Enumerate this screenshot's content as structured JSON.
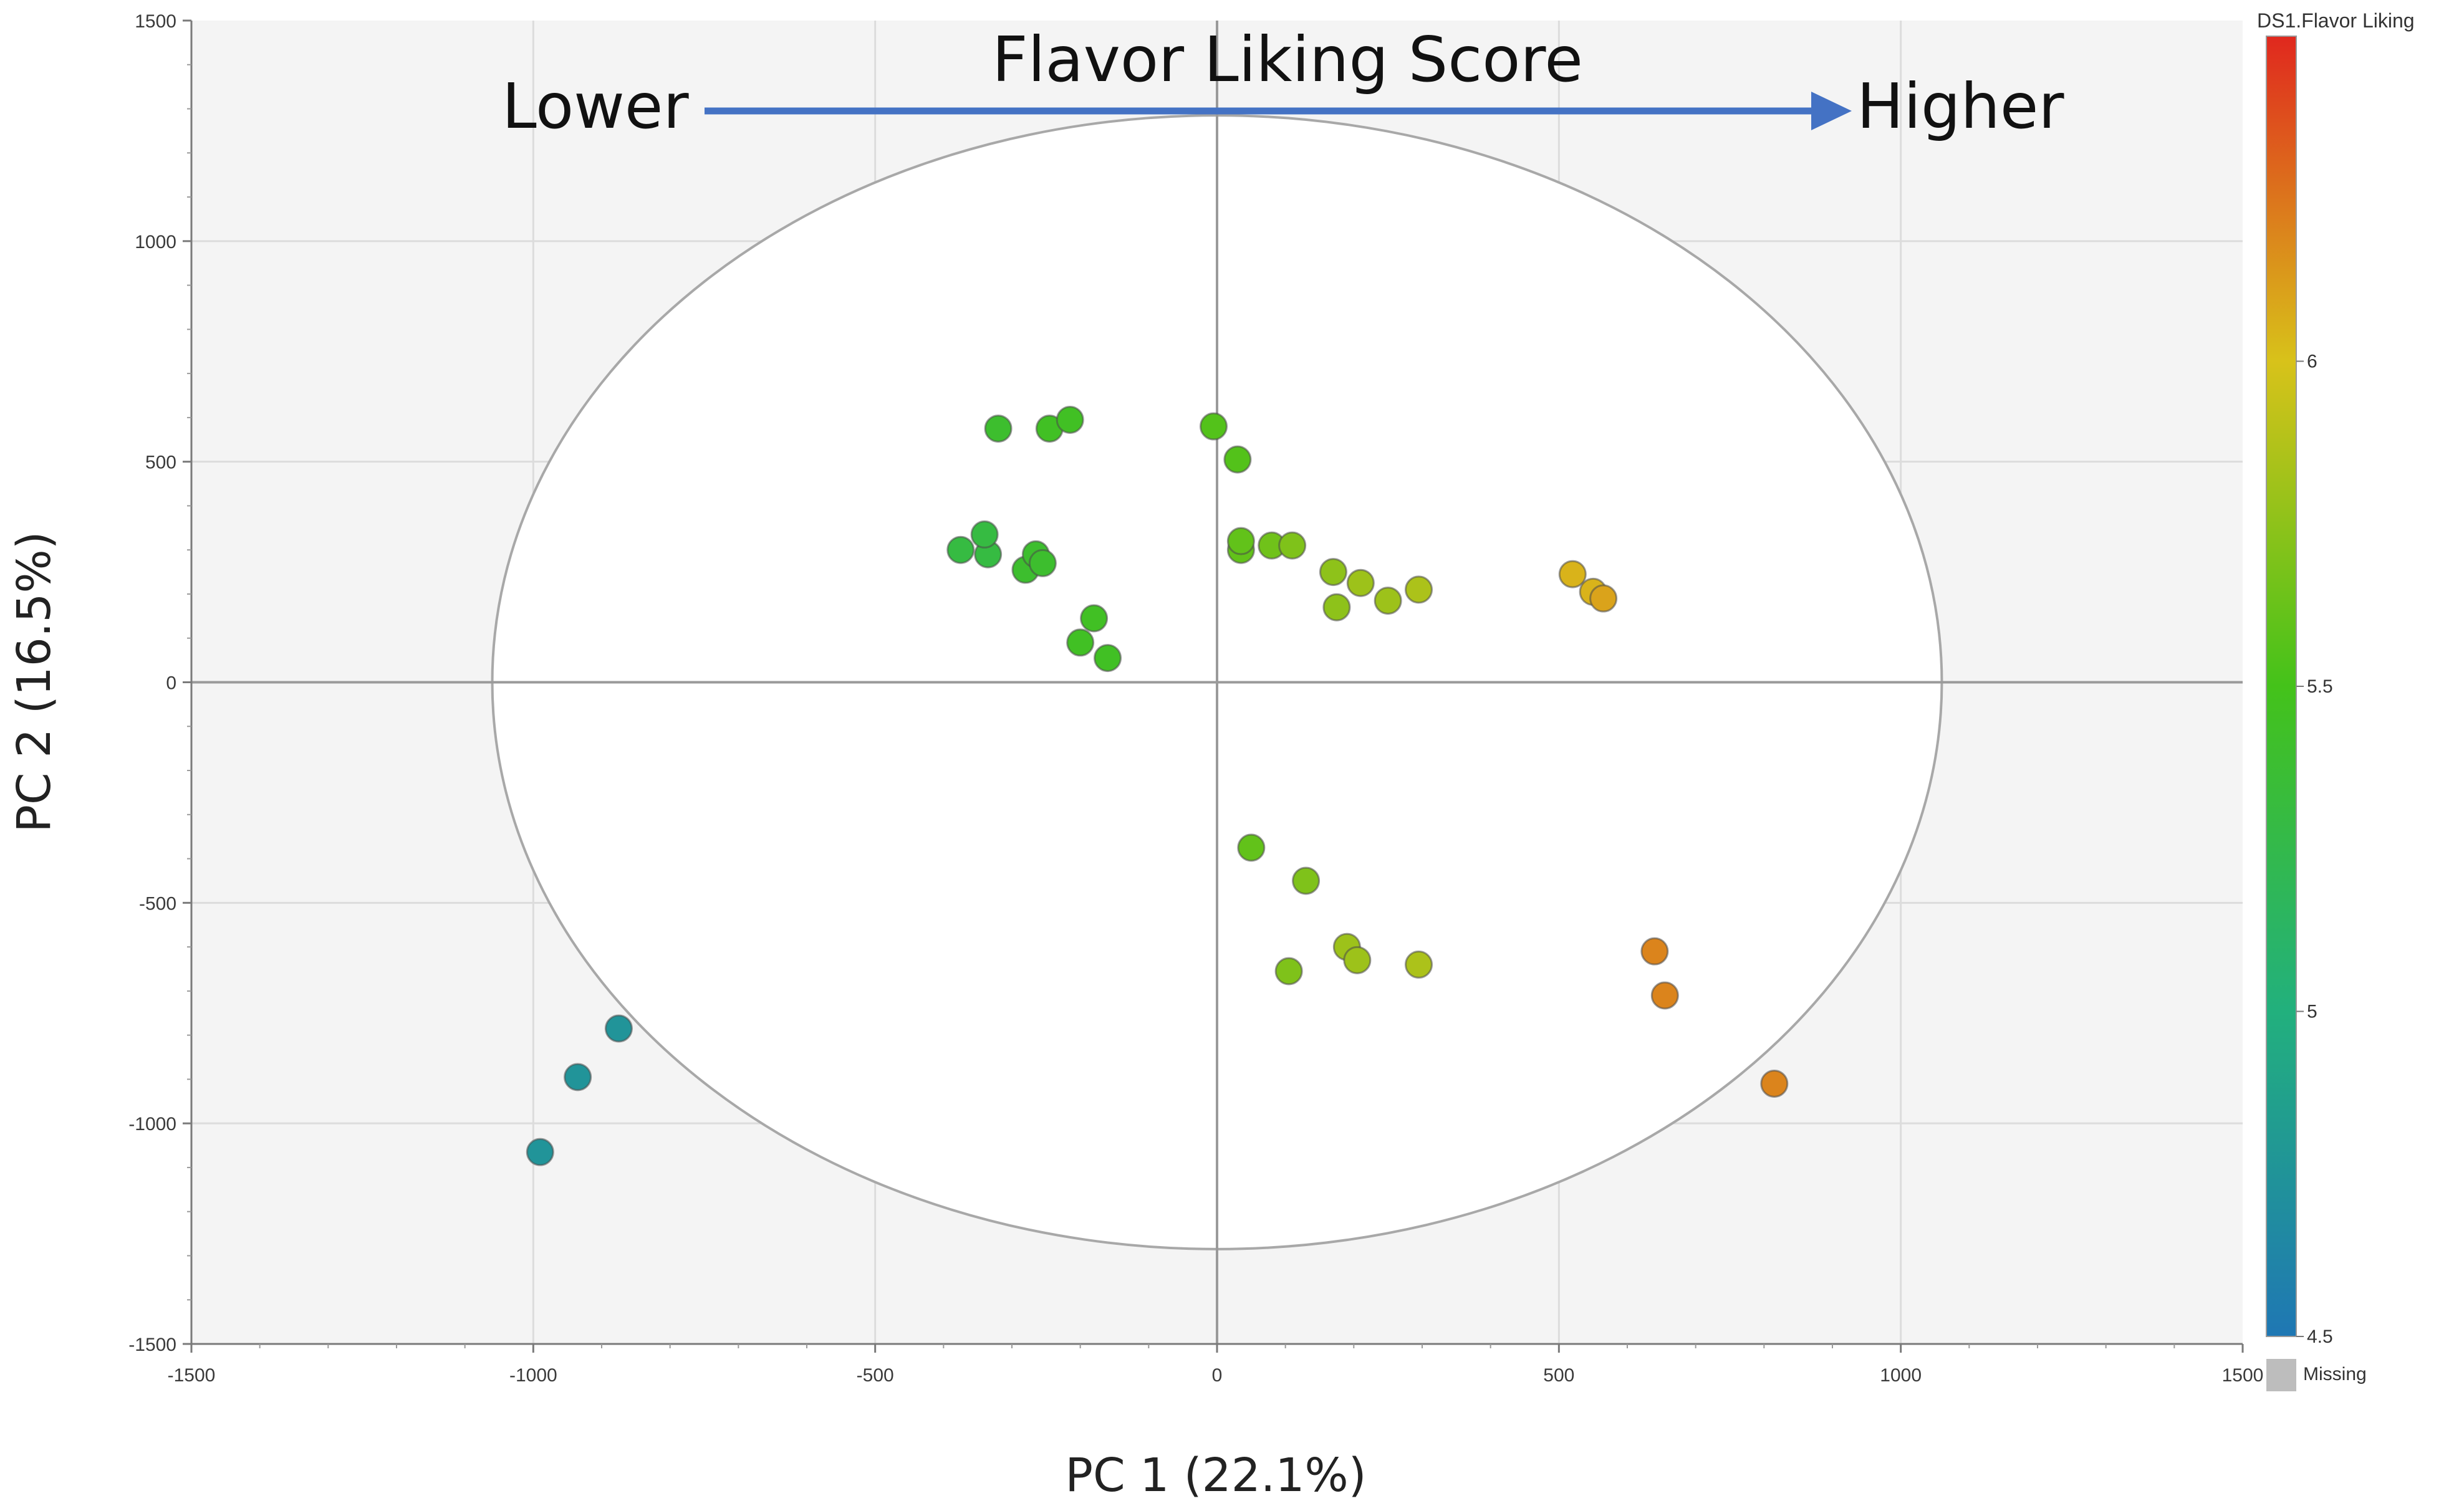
{
  "chart_data": {
    "type": "scatter",
    "title": "Flavor Liking Score",
    "annotation_low": "Lower",
    "annotation_high": "Higher",
    "xlabel": "PC 1 (22.1%)",
    "ylabel": "PC 2 (16.5%)",
    "xlim": [
      -1500,
      1500
    ],
    "ylim": [
      -1500,
      1500
    ],
    "xticks": [
      -1500,
      -1000,
      -500,
      0,
      500,
      1000,
      1500
    ],
    "yticks": [
      -1500,
      -1000,
      -500,
      0,
      500,
      1000,
      1500
    ],
    "xtick_labels": [
      "-1500",
      "-1000",
      "-500",
      "0",
      "500",
      "1000",
      "1500"
    ],
    "ytick_labels": [
      "-1500",
      "-1000",
      "-500",
      "0",
      "500",
      "1000",
      "1500"
    ],
    "grid": true,
    "confidence_ellipse": {
      "center": [
        0,
        0
      ],
      "rx": 1060,
      "ry": 1285
    },
    "colorbar": {
      "title": "DS1.Flavor Liking",
      "min": 4.5,
      "max": 6.5,
      "ticks": [
        4.5,
        5,
        5.5,
        6
      ],
      "tick_labels": [
        "4.5",
        "5",
        "5.5",
        "6"
      ],
      "missing_label": "Missing",
      "missing_color": "#bdbdbd",
      "color_stops": [
        {
          "value": 4.5,
          "color": "#1f77b4"
        },
        {
          "value": 5.0,
          "color": "#22b07d"
        },
        {
          "value": 5.5,
          "color": "#44c21a"
        },
        {
          "value": 6.0,
          "color": "#d8c21a"
        },
        {
          "value": 6.5,
          "color": "#e0281e"
        }
      ]
    },
    "points": [
      {
        "x": -990,
        "y": -1065,
        "liking": 4.75
      },
      {
        "x": -935,
        "y": -895,
        "liking": 4.75
      },
      {
        "x": -875,
        "y": -785,
        "liking": 4.75
      },
      {
        "x": -375,
        "y": 300,
        "liking": 5.3
      },
      {
        "x": -335,
        "y": 290,
        "liking": 5.3
      },
      {
        "x": -340,
        "y": 335,
        "liking": 5.3
      },
      {
        "x": -320,
        "y": 575,
        "liking": 5.4
      },
      {
        "x": -280,
        "y": 255,
        "liking": 5.4
      },
      {
        "x": -265,
        "y": 290,
        "liking": 5.4
      },
      {
        "x": -255,
        "y": 270,
        "liking": 5.4
      },
      {
        "x": -245,
        "y": 575,
        "liking": 5.45
      },
      {
        "x": -215,
        "y": 595,
        "liking": 5.45
      },
      {
        "x": -200,
        "y": 90,
        "liking": 5.45
      },
      {
        "x": -180,
        "y": 145,
        "liking": 5.45
      },
      {
        "x": -160,
        "y": 55,
        "liking": 5.45
      },
      {
        "x": -5,
        "y": 580,
        "liking": 5.55
      },
      {
        "x": 30,
        "y": 505,
        "liking": 5.55
      },
      {
        "x": 35,
        "y": 300,
        "liking": 5.6
      },
      {
        "x": 35,
        "y": 320,
        "liking": 5.6
      },
      {
        "x": 80,
        "y": 310,
        "liking": 5.65
      },
      {
        "x": 110,
        "y": 310,
        "liking": 5.7
      },
      {
        "x": 170,
        "y": 250,
        "liking": 5.75
      },
      {
        "x": 175,
        "y": 170,
        "liking": 5.75
      },
      {
        "x": 210,
        "y": 225,
        "liking": 5.8
      },
      {
        "x": 250,
        "y": 185,
        "liking": 5.8
      },
      {
        "x": 295,
        "y": 210,
        "liking": 5.85
      },
      {
        "x": 50,
        "y": -375,
        "liking": 5.6
      },
      {
        "x": 130,
        "y": -450,
        "liking": 5.7
      },
      {
        "x": 105,
        "y": -655,
        "liking": 5.7
      },
      {
        "x": 190,
        "y": -600,
        "liking": 5.8
      },
      {
        "x": 205,
        "y": -630,
        "liking": 5.8
      },
      {
        "x": 295,
        "y": -640,
        "liking": 5.85
      },
      {
        "x": 520,
        "y": 245,
        "liking": 6.05
      },
      {
        "x": 550,
        "y": 205,
        "liking": 6.05
      },
      {
        "x": 565,
        "y": 190,
        "liking": 6.1
      },
      {
        "x": 640,
        "y": -610,
        "liking": 6.2
      },
      {
        "x": 655,
        "y": -710,
        "liking": 6.2
      },
      {
        "x": 815,
        "y": -910,
        "liking": 6.2
      }
    ]
  }
}
